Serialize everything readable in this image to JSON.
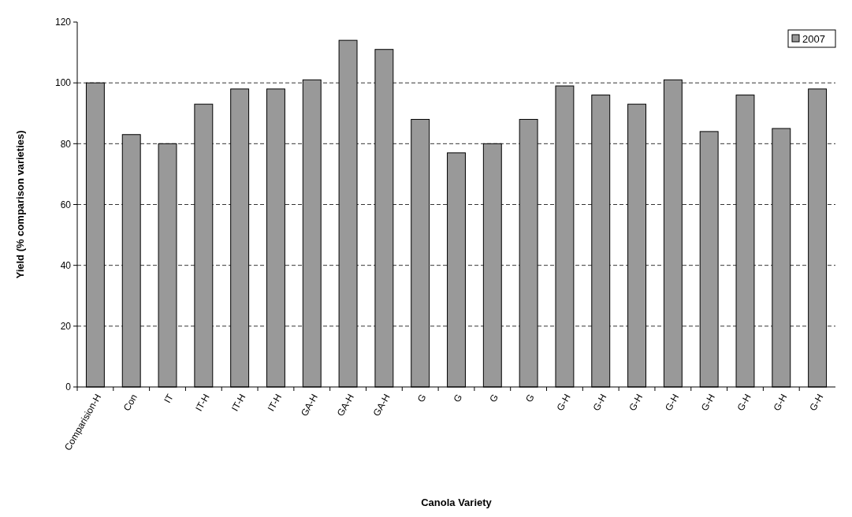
{
  "chart_data": {
    "type": "bar",
    "xlabel": "Canola Variety",
    "ylabel": "Yield (% comparison varieties)",
    "categories": [
      "Comparision-H",
      "Con",
      "IT",
      "IT-H",
      "IT-H",
      "IT-H",
      "GA-H",
      "GA-H",
      "GA-H",
      "G",
      "G",
      "G",
      "G",
      "G-H",
      "G-H",
      "G-H",
      "G-H",
      "G-H",
      "G-H",
      "G-H",
      "G-H"
    ],
    "series": [
      {
        "name": "2007",
        "color": "#999999",
        "values": [
          100,
          83,
          80,
          93,
          98,
          98,
          101,
          114,
          111,
          88,
          77,
          80,
          88,
          99,
          96,
          93,
          101,
          84,
          96,
          85,
          98
        ]
      }
    ],
    "ylim": [
      0,
      120
    ],
    "yticks": [
      0,
      20,
      40,
      60,
      80,
      100,
      120
    ],
    "grid": "y",
    "legend": "top right"
  }
}
